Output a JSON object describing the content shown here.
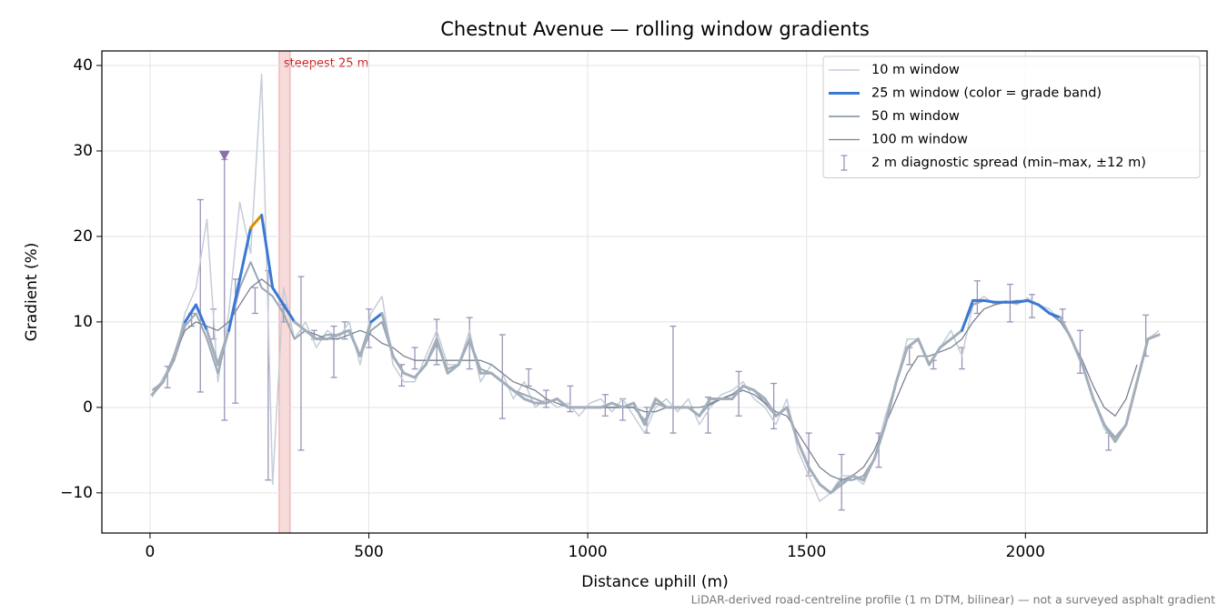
{
  "chart_data": {
    "type": "line",
    "title": "Chestnut Avenue — rolling window gradients",
    "x_label": "Distance uphill (m)",
    "y_label": "Gradient (%)",
    "footnote": "LiDAR-derived road-centreline profile (1 m DTM, bilinear) — not a surveyed asphalt gradient",
    "xlim": [
      -110,
      2415
    ],
    "ylim": [
      -14.7,
      41.7
    ],
    "xticks": [
      0,
      500,
      1000,
      1500,
      2000
    ],
    "yticks": [
      {
        "value": -10,
        "label": "−10"
      },
      0,
      10,
      20,
      30,
      40
    ],
    "grid": true,
    "legend": "upper right",
    "x": [
      5,
      30,
      55,
      80,
      105,
      130,
      155,
      180,
      205,
      230,
      255,
      280,
      305,
      330,
      355,
      380,
      405,
      430,
      455,
      480,
      505,
      530,
      555,
      580,
      605,
      630,
      655,
      680,
      705,
      730,
      755,
      780,
      805,
      830,
      855,
      880,
      905,
      930,
      955,
      980,
      1005,
      1030,
      1055,
      1080,
      1105,
      1130,
      1155,
      1180,
      1205,
      1230,
      1255,
      1280,
      1305,
      1330,
      1355,
      1380,
      1405,
      1430,
      1455,
      1480,
      1505,
      1530,
      1555,
      1580,
      1605,
      1630,
      1655,
      1680,
      1705,
      1730,
      1755,
      1780,
      1805,
      1830,
      1855,
      1880,
      1905,
      1930,
      1955,
      1980,
      2005,
      2030,
      2055,
      2080,
      2105,
      2130,
      2155,
      2180,
      2205,
      2230,
      2255,
      2280,
      2305
    ],
    "series": [
      {
        "name": "10 m window",
        "color": "#c5cdd8",
        "width": 1.5,
        "values": [
          1.2,
          3.5,
          5.5,
          11,
          14,
          22,
          3,
          11,
          24,
          18,
          39,
          -9,
          14,
          8,
          10,
          7,
          9,
          8,
          10,
          5,
          11,
          13,
          5,
          3,
          3,
          6,
          9,
          5,
          5,
          9,
          3,
          5,
          4,
          1,
          3,
          0,
          1,
          0,
          0.5,
          -1,
          0.5,
          1,
          -0.5,
          1,
          -1,
          -3,
          0,
          1,
          -0.5,
          1,
          -2,
          0,
          1.5,
          2,
          3,
          1,
          0,
          -2,
          1,
          -5,
          -8,
          -11,
          -10,
          -8,
          -8,
          -9,
          -6,
          -1,
          3,
          8,
          8,
          5,
          7,
          9,
          6,
          12,
          13,
          12,
          12.5,
          12,
          12.8,
          12,
          11.5,
          10,
          8,
          5,
          1,
          -2.5,
          -4,
          -2,
          3,
          8,
          9
        ]
      },
      {
        "name": "25 m window (color = grade band)",
        "color": "#3a78d4",
        "width": 3,
        "grade_bands": [
          {
            "to": 10,
            "color": "#a3aebb"
          },
          {
            "from": 10,
            "to": 20,
            "color": "#3a78d4"
          },
          {
            "from": 20,
            "color": "#e08a00"
          }
        ],
        "values": [
          1.5,
          3,
          6,
          10,
          12,
          9,
          5,
          9,
          15,
          21,
          22.5,
          14,
          12,
          10,
          9,
          8,
          8,
          8.5,
          9,
          6,
          10,
          11,
          6,
          4,
          3.5,
          5,
          8,
          4,
          5,
          8,
          4,
          4,
          3,
          2,
          1,
          0.5,
          0.5,
          1,
          0,
          0,
          0,
          0,
          0.5,
          0,
          0.5,
          -2,
          1,
          0,
          0,
          0,
          -1,
          1,
          1,
          1,
          2.5,
          2,
          1,
          -1,
          0,
          -4,
          -7,
          -9,
          -10,
          -9,
          -8,
          -8.5,
          -6,
          -2,
          3,
          7,
          8,
          5,
          7,
          8,
          9,
          12.5,
          12.5,
          12.3,
          12.3,
          12.3,
          12.5,
          12,
          11,
          10.5,
          8,
          5,
          1,
          -2,
          -4,
          -2,
          3,
          8,
          8.5
        ]
      },
      {
        "name": "50 m window",
        "color": "#9aa7b5",
        "width": 2,
        "values": [
          2,
          3,
          5.5,
          9.5,
          11,
          8,
          4,
          9,
          14,
          17,
          14,
          13,
          11,
          8,
          9,
          8,
          8.5,
          8.5,
          9,
          6,
          9,
          10,
          6,
          4,
          3.5,
          5,
          7.5,
          4.5,
          5,
          8,
          4.5,
          4,
          3,
          2,
          1.5,
          1,
          0.5,
          1,
          0,
          0,
          0,
          0,
          0,
          0,
          0,
          -1.5,
          0.5,
          0,
          0,
          0,
          -1,
          0.5,
          1,
          1.5,
          2.5,
          2,
          0.5,
          -1,
          0,
          -4,
          -7,
          -9,
          -10,
          -8.5,
          -8.5,
          -8,
          -6,
          -2,
          3,
          7,
          8,
          5,
          7,
          8,
          9,
          12,
          12.5,
          12.3,
          12.3,
          12.3,
          12.5,
          12,
          11,
          10.5,
          8,
          5,
          1,
          -2,
          -3.5,
          -2,
          3,
          8,
          8.5
        ]
      },
      {
        "name": "100 m window",
        "color": "#7a8290",
        "width": 1.3,
        "values": [
          null,
          null,
          6,
          9,
          10,
          9.5,
          9,
          10,
          12,
          14,
          15,
          14,
          12,
          10,
          9,
          8.5,
          8,
          8,
          8.5,
          9,
          8.5,
          7.5,
          7,
          6,
          5.5,
          5.5,
          5.5,
          5.5,
          5.5,
          5.5,
          5.5,
          5,
          4,
          3,
          2.5,
          2,
          1,
          0.5,
          0,
          0,
          0,
          0,
          0,
          0,
          0,
          -0.5,
          -0.5,
          0,
          0,
          0,
          0,
          0.3,
          1,
          1.5,
          2,
          1.5,
          0.5,
          -0.5,
          -1,
          -3,
          -5,
          -7,
          -8,
          -8.5,
          -8,
          -7,
          -5,
          -2,
          1,
          4,
          6,
          6,
          6.5,
          7,
          8,
          10,
          11.5,
          12,
          12.3,
          12.5,
          12.5,
          12,
          11,
          10,
          8,
          5.5,
          2.5,
          0,
          -1,
          1,
          5,
          null,
          null
        ]
      }
    ],
    "errorbars": {
      "name": "2 m diagnostic spread (min–max, ±12 m)",
      "color": "#9a94b8",
      "x": [
        40,
        95,
        115,
        145,
        170,
        195,
        240,
        270,
        305,
        345,
        375,
        420,
        445,
        500,
        575,
        605,
        655,
        730,
        805,
        865,
        905,
        960,
        1040,
        1080,
        1135,
        1195,
        1275,
        1345,
        1425,
        1505,
        1580,
        1665,
        1735,
        1790,
        1855,
        1890,
        1965,
        2015,
        2085,
        2125,
        2190,
        2275
      ],
      "low": [
        2.3,
        9.5,
        1.8,
        8,
        -1.5,
        0.5,
        11,
        -8.5,
        10,
        -5,
        8,
        3.5,
        8,
        7,
        2.5,
        4.5,
        5,
        4.5,
        -1.3,
        2.5,
        0,
        -0.5,
        -1,
        -1.5,
        -3,
        -3,
        -3,
        -1,
        -2.5,
        -8,
        -12,
        -7,
        5,
        4.5,
        4.5,
        11,
        10,
        10.5,
        10,
        4,
        -5,
        6
      ],
      "high": [
        4.8,
        11,
        24.3,
        11.5,
        29,
        15,
        14,
        16,
        12,
        15.3,
        9,
        9.5,
        10,
        11.5,
        5,
        7,
        10.3,
        10.5,
        8.5,
        4.5,
        2,
        2.5,
        1.5,
        1,
        0,
        9.5,
        1.2,
        4.2,
        2.8,
        -3,
        -5.5,
        -3,
        7,
        5.5,
        7,
        14.8,
        14.4,
        13.2,
        11.5,
        9,
        -3,
        10.8
      ]
    },
    "markers": [
      {
        "x": 170,
        "y": 29.5,
        "color": "#8a70a8"
      }
    ],
    "highlight_span": {
      "from": 295,
      "to": 320,
      "label": "steepest 25 m",
      "color": "#f2c2c2",
      "label_color": "#cc2222"
    }
  }
}
